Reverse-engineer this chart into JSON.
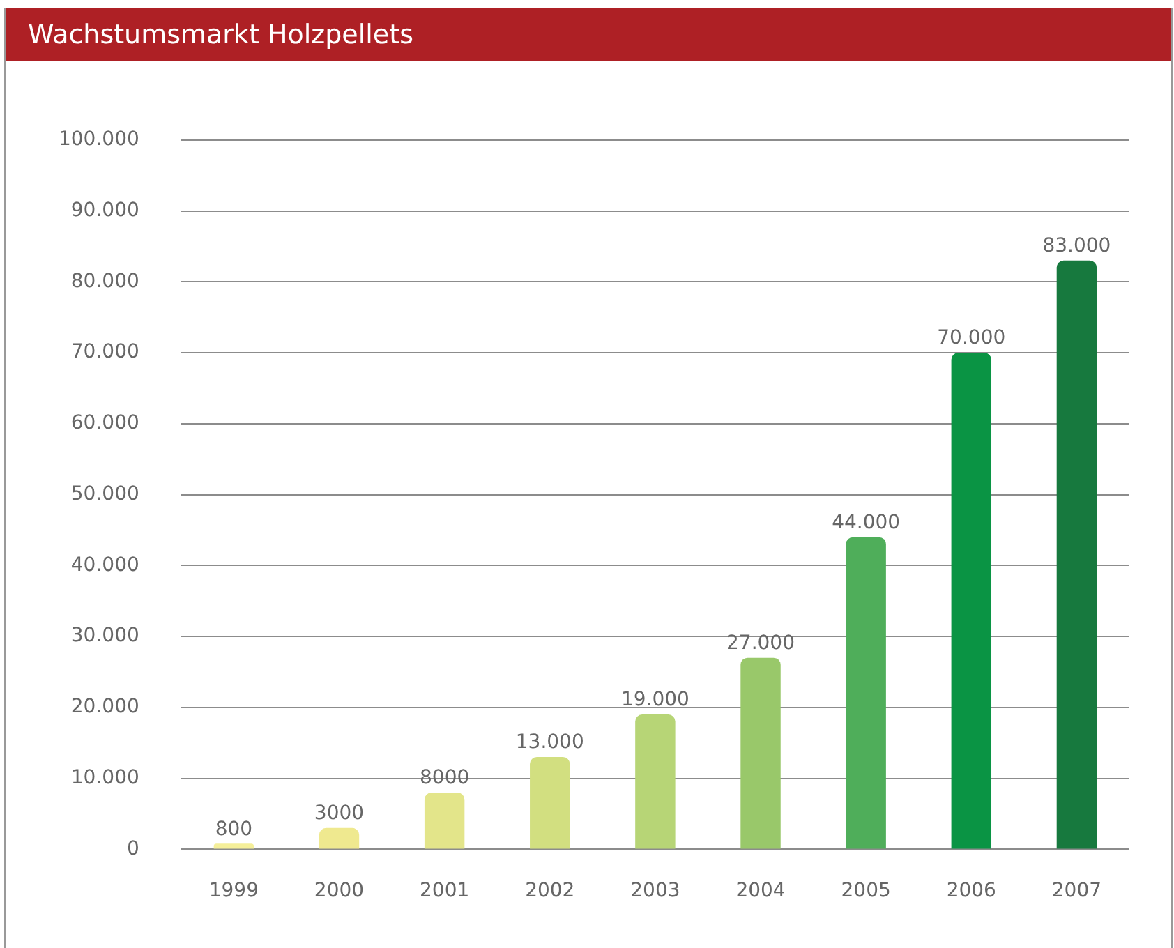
{
  "chart_data": {
    "type": "bar",
    "title": "Wachstumsmarkt Holzpellets",
    "categories": [
      "1999",
      "2000",
      "2001",
      "2002",
      "2003",
      "2004",
      "2005",
      "2006",
      "2007"
    ],
    "values": [
      800,
      3000,
      8000,
      13000,
      19000,
      27000,
      44000,
      70000,
      83000
    ],
    "value_labels": [
      "800",
      "3000",
      "8000",
      "13.000",
      "19.000",
      "27.000",
      "44.000",
      "70.000",
      "83.000"
    ],
    "colors": [
      "#f5ef9a",
      "#efe98f",
      "#e3e58a",
      "#d2df80",
      "#b7d576",
      "#99c86a",
      "#4fae5a",
      "#0a9444",
      "#17793e"
    ],
    "ylim": [
      0,
      100000
    ],
    "yticks": [
      0,
      {
        "value": 10000,
        "label": "10.000"
      },
      {
        "value": 20000,
        "label": "20.000"
      },
      {
        "value": 30000,
        "label": "30.000"
      },
      {
        "value": 40000,
        "label": "40.000"
      },
      {
        "value": 50000,
        "label": "50.000"
      },
      {
        "value": 60000,
        "label": "60.000"
      },
      {
        "value": 70000,
        "label": "70.000"
      },
      {
        "value": 80000,
        "label": "80.000"
      },
      {
        "value": 90000,
        "label": "90.000"
      },
      {
        "value": 100000,
        "label": "100.000"
      }
    ],
    "grid": "y",
    "legend": false
  }
}
